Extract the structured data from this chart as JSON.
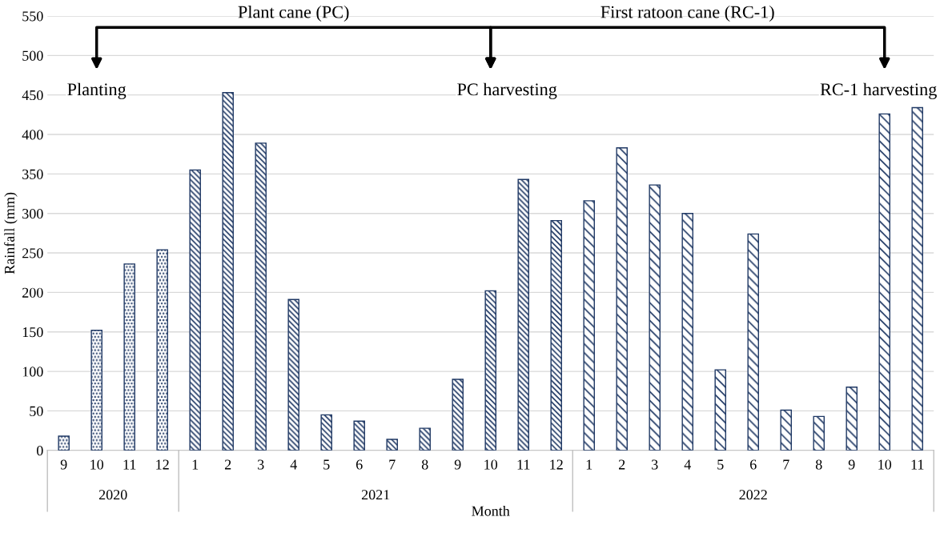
{
  "chart_data": {
    "type": "bar",
    "xlabel": "Month",
    "ylabel": "Rainfall (mm)",
    "categories": [
      "9",
      "10",
      "11",
      "12",
      "1",
      "2",
      "3",
      "4",
      "5",
      "6",
      "7",
      "8",
      "9",
      "10",
      "11",
      "12",
      "1",
      "2",
      "3",
      "4",
      "5",
      "6",
      "7",
      "8",
      "9",
      "10",
      "11"
    ],
    "series": [
      {
        "name": "2020",
        "color": "#1f3864",
        "values": [
          18,
          152,
          236,
          254,
          null,
          null,
          null,
          null,
          null,
          null,
          null,
          null,
          null,
          null,
          null,
          null,
          null,
          null,
          null,
          null,
          null,
          null,
          null,
          null,
          null,
          null,
          null
        ]
      },
      {
        "name": "2021",
        "color": "#1f3864",
        "values": [
          null,
          null,
          null,
          null,
          355,
          453,
          389,
          191,
          45,
          37,
          14,
          28,
          90,
          202,
          343,
          291,
          null,
          null,
          null,
          null,
          null,
          null,
          null,
          null,
          null,
          null,
          null
        ]
      },
      {
        "name": "2022",
        "color": "#1f3864",
        "values": [
          null,
          null,
          null,
          null,
          null,
          null,
          null,
          null,
          null,
          null,
          null,
          null,
          null,
          null,
          null,
          null,
          316,
          383,
          336,
          300,
          102,
          274,
          51,
          43,
          80,
          426,
          434
        ]
      }
    ],
    "ylim": [
      0,
      550
    ],
    "yticks": [
      0,
      50,
      100,
      150,
      200,
      250,
      300,
      350,
      400,
      450,
      500,
      550
    ],
    "grid": "y",
    "legend": false,
    "annotations": [
      "Plant cane (PC)",
      "First ratoon cane (RC-1)",
      "Planting",
      "PC harvesting",
      "RC-1 harvesting"
    ]
  }
}
